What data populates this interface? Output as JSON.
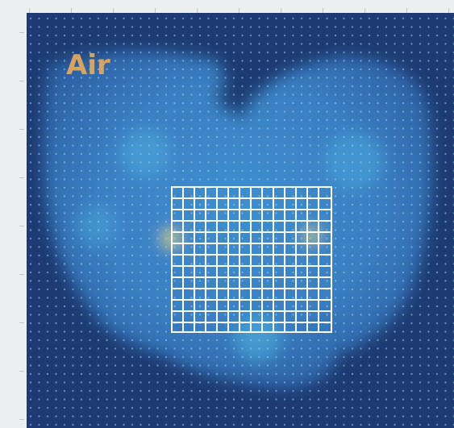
{
  "label": "Air"
}
